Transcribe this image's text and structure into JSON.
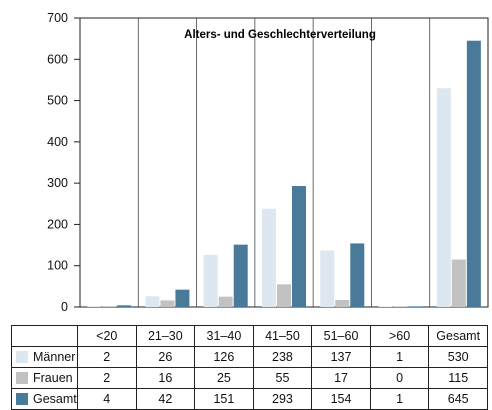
{
  "chart_data": {
    "type": "bar",
    "title": "Alters- und Geschlechterverteilung",
    "categories": [
      "<20",
      "21–30",
      "31–40",
      "41–50",
      "51–60",
      ">60",
      "Gesamt"
    ],
    "series": [
      {
        "name": "Männer",
        "color": "#dde7ef",
        "values": [
          2,
          26,
          126,
          238,
          137,
          1,
          530
        ]
      },
      {
        "name": "Frauen",
        "color": "#c2c2c2",
        "values": [
          2,
          16,
          25,
          55,
          17,
          0,
          115
        ]
      },
      {
        "name": "Gesamt",
        "color": "#4a7a9a",
        "values": [
          4,
          42,
          151,
          293,
          154,
          1,
          645
        ]
      }
    ],
    "yticks": [
      0,
      100,
      200,
      300,
      400,
      500,
      600,
      700
    ],
    "ylim": [
      0,
      700
    ],
    "grid": "vertical category separators",
    "legend": "table below chart"
  }
}
